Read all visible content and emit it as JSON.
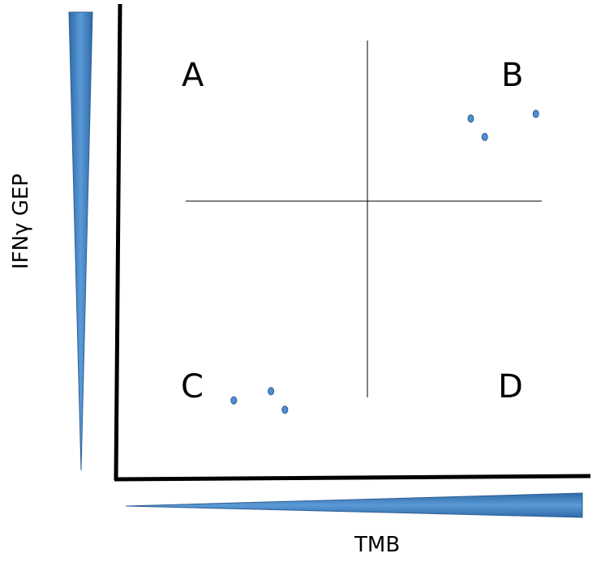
{
  "colors": {
    "axis": "#000000",
    "divider": "#000000",
    "wedge_fill": "#3f7fc0",
    "wedge_stroke": "#2f5f95",
    "point_fill": "#4f8fd0",
    "point_stroke": "#2c5d8f"
  },
  "x_axis": {
    "label": "TMB"
  },
  "y_axis": {
    "label": "IFNγ GEP"
  },
  "quadrants": {
    "top_left": "A",
    "top_right": "B",
    "bottom_left": "C",
    "bottom_right": "D"
  },
  "chart_data": {
    "type": "scatter",
    "xlabel": "TMB",
    "ylabel": "IFNγ GEP",
    "xlim": [
      0,
      10
    ],
    "ylim": [
      0,
      10
    ],
    "grid": false,
    "quadrant_split": {
      "x": 5.3,
      "y": 5.5
    },
    "series": [
      {
        "name": "B",
        "points": [
          {
            "x": 7.6,
            "y": 7.7
          },
          {
            "x": 7.9,
            "y": 7.3
          },
          {
            "x": 9.0,
            "y": 7.8
          }
        ]
      },
      {
        "name": "C",
        "points": [
          {
            "x": 2.5,
            "y": 1.6
          },
          {
            "x": 3.3,
            "y": 1.8
          },
          {
            "x": 3.6,
            "y": 1.4
          }
        ]
      }
    ]
  }
}
